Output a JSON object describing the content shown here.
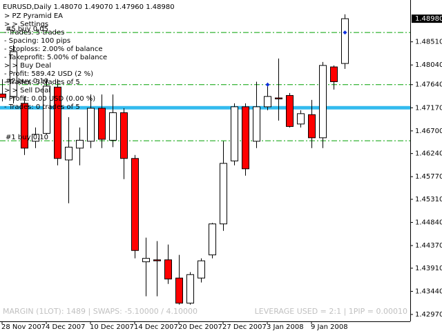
{
  "header": "EURUSD,Daily  1.48070 1.49070 1.47960 1.48980",
  "panel": [
    "> PZ Pyramid EA",
    "> > Settings",
    "- Trades: 5 trades",
    "- Spacing: 100 pips",
    "- Stoploss: 2.00% of balance",
    "- Takeprofit: 5.00% of balance",
    "> > Buy Deal",
    "- Profit: 589.42 USD (2 %)",
    "- Trades: 3 trades of 5",
    "> > Sell Deal",
    "- Profit: 0.00 USD (0.00 %)",
    "- Trades: 0 trades of 5"
  ],
  "footer": {
    "left": "MARGIN (1LOT): 1489 | SWAPS: -5.10000 / 4.10000",
    "right": "LEVERAGE USED  = 2:1 | 1PIP = 0.00010"
  },
  "chart_data": {
    "type": "candlestick",
    "categories": [
      "28 Nov 2007",
      null,
      null,
      null,
      "4 Dec 2007",
      null,
      null,
      null,
      "10 Dec 2007",
      null,
      null,
      null,
      "14 Dec 2007",
      null,
      null,
      null,
      "20 Dec 2007",
      null,
      null,
      null,
      "27 Dec 2007",
      null,
      null,
      null,
      "3 Jan 2008",
      null,
      null,
      null,
      "9 Jan 2008",
      null,
      null,
      null
    ],
    "open": [
      1.4745,
      1.474,
      1.4726,
      1.4649,
      1.4665,
      1.4759,
      1.4611,
      1.4635,
      1.4649,
      1.4716,
      1.4651,
      1.4707,
      1.4614,
      1.4404,
      1.4408,
      1.4408,
      1.4371,
      1.432,
      1.4371,
      1.4418,
      1.4481,
      1.4609,
      1.4719,
      1.4649,
      1.4719,
      1.4737,
      1.4742,
      1.4684,
      1.4703,
      1.4656,
      1.48,
      1.4807
    ],
    "high": [
      1.4775,
      1.4845,
      1.474,
      1.4677,
      1.4775,
      1.4775,
      1.4698,
      1.4677,
      1.4744,
      1.4744,
      1.4744,
      1.4716,
      1.4621,
      1.4453,
      1.4446,
      1.4439,
      1.4418,
      1.4383,
      1.4411,
      1.4483,
      1.4649,
      1.4726,
      1.4726,
      1.477,
      1.4768,
      1.4817,
      1.4747,
      1.4712,
      1.4733,
      1.481,
      1.4803,
      1.4907
    ],
    "low": [
      1.473,
      1.4726,
      1.4621,
      1.4635,
      1.4663,
      1.46,
      1.4523,
      1.46,
      1.4635,
      1.4635,
      1.4637,
      1.4572,
      1.4411,
      1.4334,
      1.4334,
      1.4359,
      1.4317,
      1.4317,
      1.4362,
      1.4411,
      1.4467,
      1.46,
      1.4579,
      1.4635,
      1.4712,
      1.4691,
      1.4677,
      1.4677,
      1.4635,
      1.4635,
      1.4754,
      1.4796
    ],
    "close": [
      1.4738,
      1.4831,
      1.4635,
      1.4663,
      1.4761,
      1.4614,
      1.4637,
      1.4651,
      1.4716,
      1.4653,
      1.4707,
      1.4614,
      1.4427,
      1.4411,
      1.4406,
      1.4369,
      1.432,
      1.4378,
      1.4406,
      1.4481,
      1.4604,
      1.4719,
      1.4593,
      1.4719,
      1.474,
      1.4735,
      1.4679,
      1.4705,
      1.4656,
      1.4803,
      1.477,
      1.4898
    ],
    "up_color": "#ffffff",
    "down_color": "#ff0000",
    "ylim": [
      1.4283,
      1.4936
    ],
    "yticks": [
      {
        "value": 1.4851,
        "label": "1.48510"
      },
      {
        "value": 1.4804,
        "label": "1.48040"
      },
      {
        "value": 1.4764,
        "label": "1.47640"
      },
      {
        "value": 1.4717,
        "label": "1.47170"
      },
      {
        "value": 1.467,
        "label": "1.46700"
      },
      {
        "value": 1.4624,
        "label": "1.46240"
      },
      {
        "value": 1.4577,
        "label": "1.45770"
      },
      {
        "value": 1.4531,
        "label": "1.45310"
      },
      {
        "value": 1.4484,
        "label": "1.44840"
      },
      {
        "value": 1.4437,
        "label": "1.44370"
      },
      {
        "value": 1.4391,
        "label": "1.43910"
      },
      {
        "value": 1.4344,
        "label": "1.43440"
      },
      {
        "value": 1.4297,
        "label": "1.42970"
      }
    ],
    "last_price": {
      "value": 1.4898,
      "label": "1.48980"
    },
    "levels": [
      {
        "value": 1.487,
        "label": "#5 buy 0.05",
        "color": "#00a000"
      },
      {
        "value": 1.4764,
        "label": "#2 buy 0.10",
        "color": "#00a000"
      },
      {
        "value": 1.465,
        "label": "#1 buy 0.10",
        "color": "#00a000"
      }
    ],
    "hline": {
      "value": 1.4717,
      "color": "#33bbee"
    },
    "entries": [
      {
        "x": 24,
        "value": 1.4764
      },
      {
        "x": 31,
        "value": 1.487
      }
    ],
    "entry_color": "#1030e0"
  }
}
